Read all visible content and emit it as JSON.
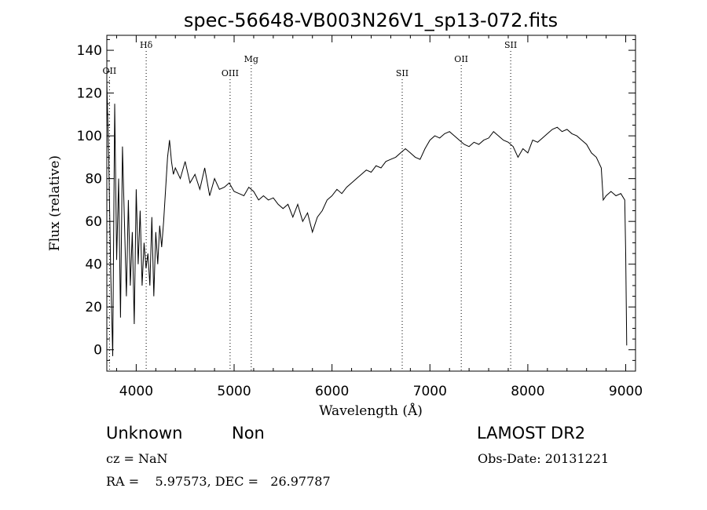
{
  "chart_data": {
    "type": "line",
    "title": "spec-56648-VB003N26V1_sp13-072.fits",
    "xlabel": "Wavelength (Å)",
    "ylabel": "Flux (relative)",
    "xlim": [
      3700,
      9100
    ],
    "ylim": [
      -10,
      147
    ],
    "grid": false,
    "xticks": [
      4000,
      5000,
      6000,
      7000,
      8000,
      9000
    ],
    "yticks": [
      0,
      20,
      40,
      60,
      80,
      100,
      120,
      140
    ],
    "line_marks": [
      {
        "label": "OII",
        "x": 3727
      },
      {
        "label": "Hδ",
        "x": 4102
      },
      {
        "label": "OIII",
        "x": 4959
      },
      {
        "label": "Mg",
        "x": 5175
      },
      {
        "label": "SII",
        "x": 6717
      },
      {
        "label": "OII",
        "x": 7320
      },
      {
        "label": "SII",
        "x": 7825
      }
    ],
    "series": [
      {
        "x": [
          3700,
          3720,
          3740,
          3760,
          3780,
          3800,
          3820,
          3840,
          3860,
          3880,
          3900,
          3920,
          3940,
          3960,
          3980,
          4000,
          4020,
          4040,
          4060,
          4080,
          4100,
          4120,
          4140,
          4160,
          4180,
          4200,
          4220,
          4240,
          4260,
          4280,
          4300,
          4320,
          4340,
          4360,
          4380,
          4400,
          4450,
          4500,
          4550,
          4600,
          4650,
          4700,
          4750,
          4800,
          4850,
          4900,
          4950,
          5000,
          5050,
          5100,
          5150,
          5200,
          5250,
          5300,
          5350,
          5400,
          5450,
          5500,
          5550,
          5600,
          5650,
          5700,
          5750,
          5800,
          5850,
          5900,
          5950,
          6000,
          6050,
          6100,
          6150,
          6200,
          6250,
          6300,
          6350,
          6400,
          6450,
          6500,
          6550,
          6600,
          6650,
          6700,
          6750,
          6800,
          6850,
          6900,
          6950,
          7000,
          7050,
          7100,
          7150,
          7200,
          7250,
          7300,
          7350,
          7400,
          7450,
          7500,
          7550,
          7600,
          7650,
          7700,
          7750,
          7800,
          7850,
          7900,
          7950,
          8000,
          8050,
          8100,
          8150,
          8200,
          8250,
          8300,
          8350,
          8400,
          8450,
          8500,
          8550,
          8600,
          8650,
          8700,
          8750,
          8770,
          8800,
          8850,
          8900,
          8950,
          8990,
          9000,
          9010
        ],
        "y": [
          125,
          88,
          35,
          -3,
          115,
          42,
          80,
          15,
          95,
          60,
          25,
          70,
          30,
          55,
          12,
          75,
          40,
          65,
          30,
          50,
          38,
          45,
          30,
          62,
          25,
          55,
          40,
          58,
          48,
          60,
          75,
          90,
          98,
          88,
          82,
          85,
          80,
          88,
          78,
          82,
          75,
          85,
          72,
          80,
          75,
          76,
          78,
          74,
          73,
          72,
          76,
          74,
          70,
          72,
          70,
          71,
          68,
          66,
          68,
          62,
          68,
          60,
          64,
          55,
          62,
          65,
          70,
          72,
          75,
          73,
          76,
          78,
          80,
          82,
          84,
          83,
          86,
          85,
          88,
          89,
          90,
          92,
          94,
          92,
          90,
          89,
          94,
          98,
          100,
          99,
          101,
          102,
          100,
          98,
          96,
          95,
          97,
          96,
          98,
          99,
          102,
          100,
          98,
          97,
          95,
          90,
          94,
          92,
          98,
          97,
          99,
          101,
          103,
          104,
          102,
          103,
          101,
          100,
          98,
          96,
          92,
          90,
          85,
          70,
          72,
          74,
          72,
          73,
          70,
          45,
          2
        ]
      }
    ]
  },
  "info": {
    "object_class": "Unknown",
    "subclass": "Non",
    "survey": "LAMOST DR2",
    "redshift": "cz = NaN",
    "obs_date": "Obs-Date: 20131221",
    "coords": "RA =    5.97573, DEC =   26.97787"
  }
}
